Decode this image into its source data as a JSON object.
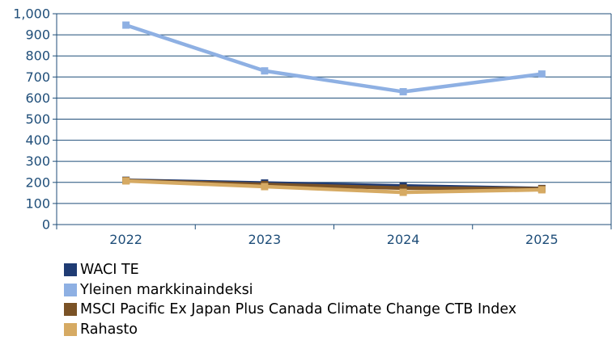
{
  "chart_data": {
    "type": "line",
    "categories": [
      "2022",
      "2023",
      "2024",
      "2025"
    ],
    "ylim": [
      0,
      1000
    ],
    "yticks": [
      "0",
      "100",
      "200",
      "300",
      "400",
      "500",
      "600",
      "700",
      "800",
      "900",
      "1,000"
    ],
    "grid": true,
    "legend_position": "bottom",
    "series": [
      {
        "name": "WACI TE",
        "color": "#1f3b73",
        "values": [
          210,
          197,
          183,
          171
        ]
      },
      {
        "name": "Yleinen markkinaindeksi",
        "color": "#8eb0e3",
        "values": [
          946,
          729,
          630,
          714
        ]
      },
      {
        "name": "MSCI Pacific Ex Japan Plus Canada Climate Change CTB Index",
        "color": "#7a5226",
        "values": [
          209,
          190,
          173,
          170
        ]
      },
      {
        "name": "Rahasto",
        "color": "#d6aa63",
        "values": [
          207,
          180,
          153,
          165
        ]
      }
    ]
  }
}
